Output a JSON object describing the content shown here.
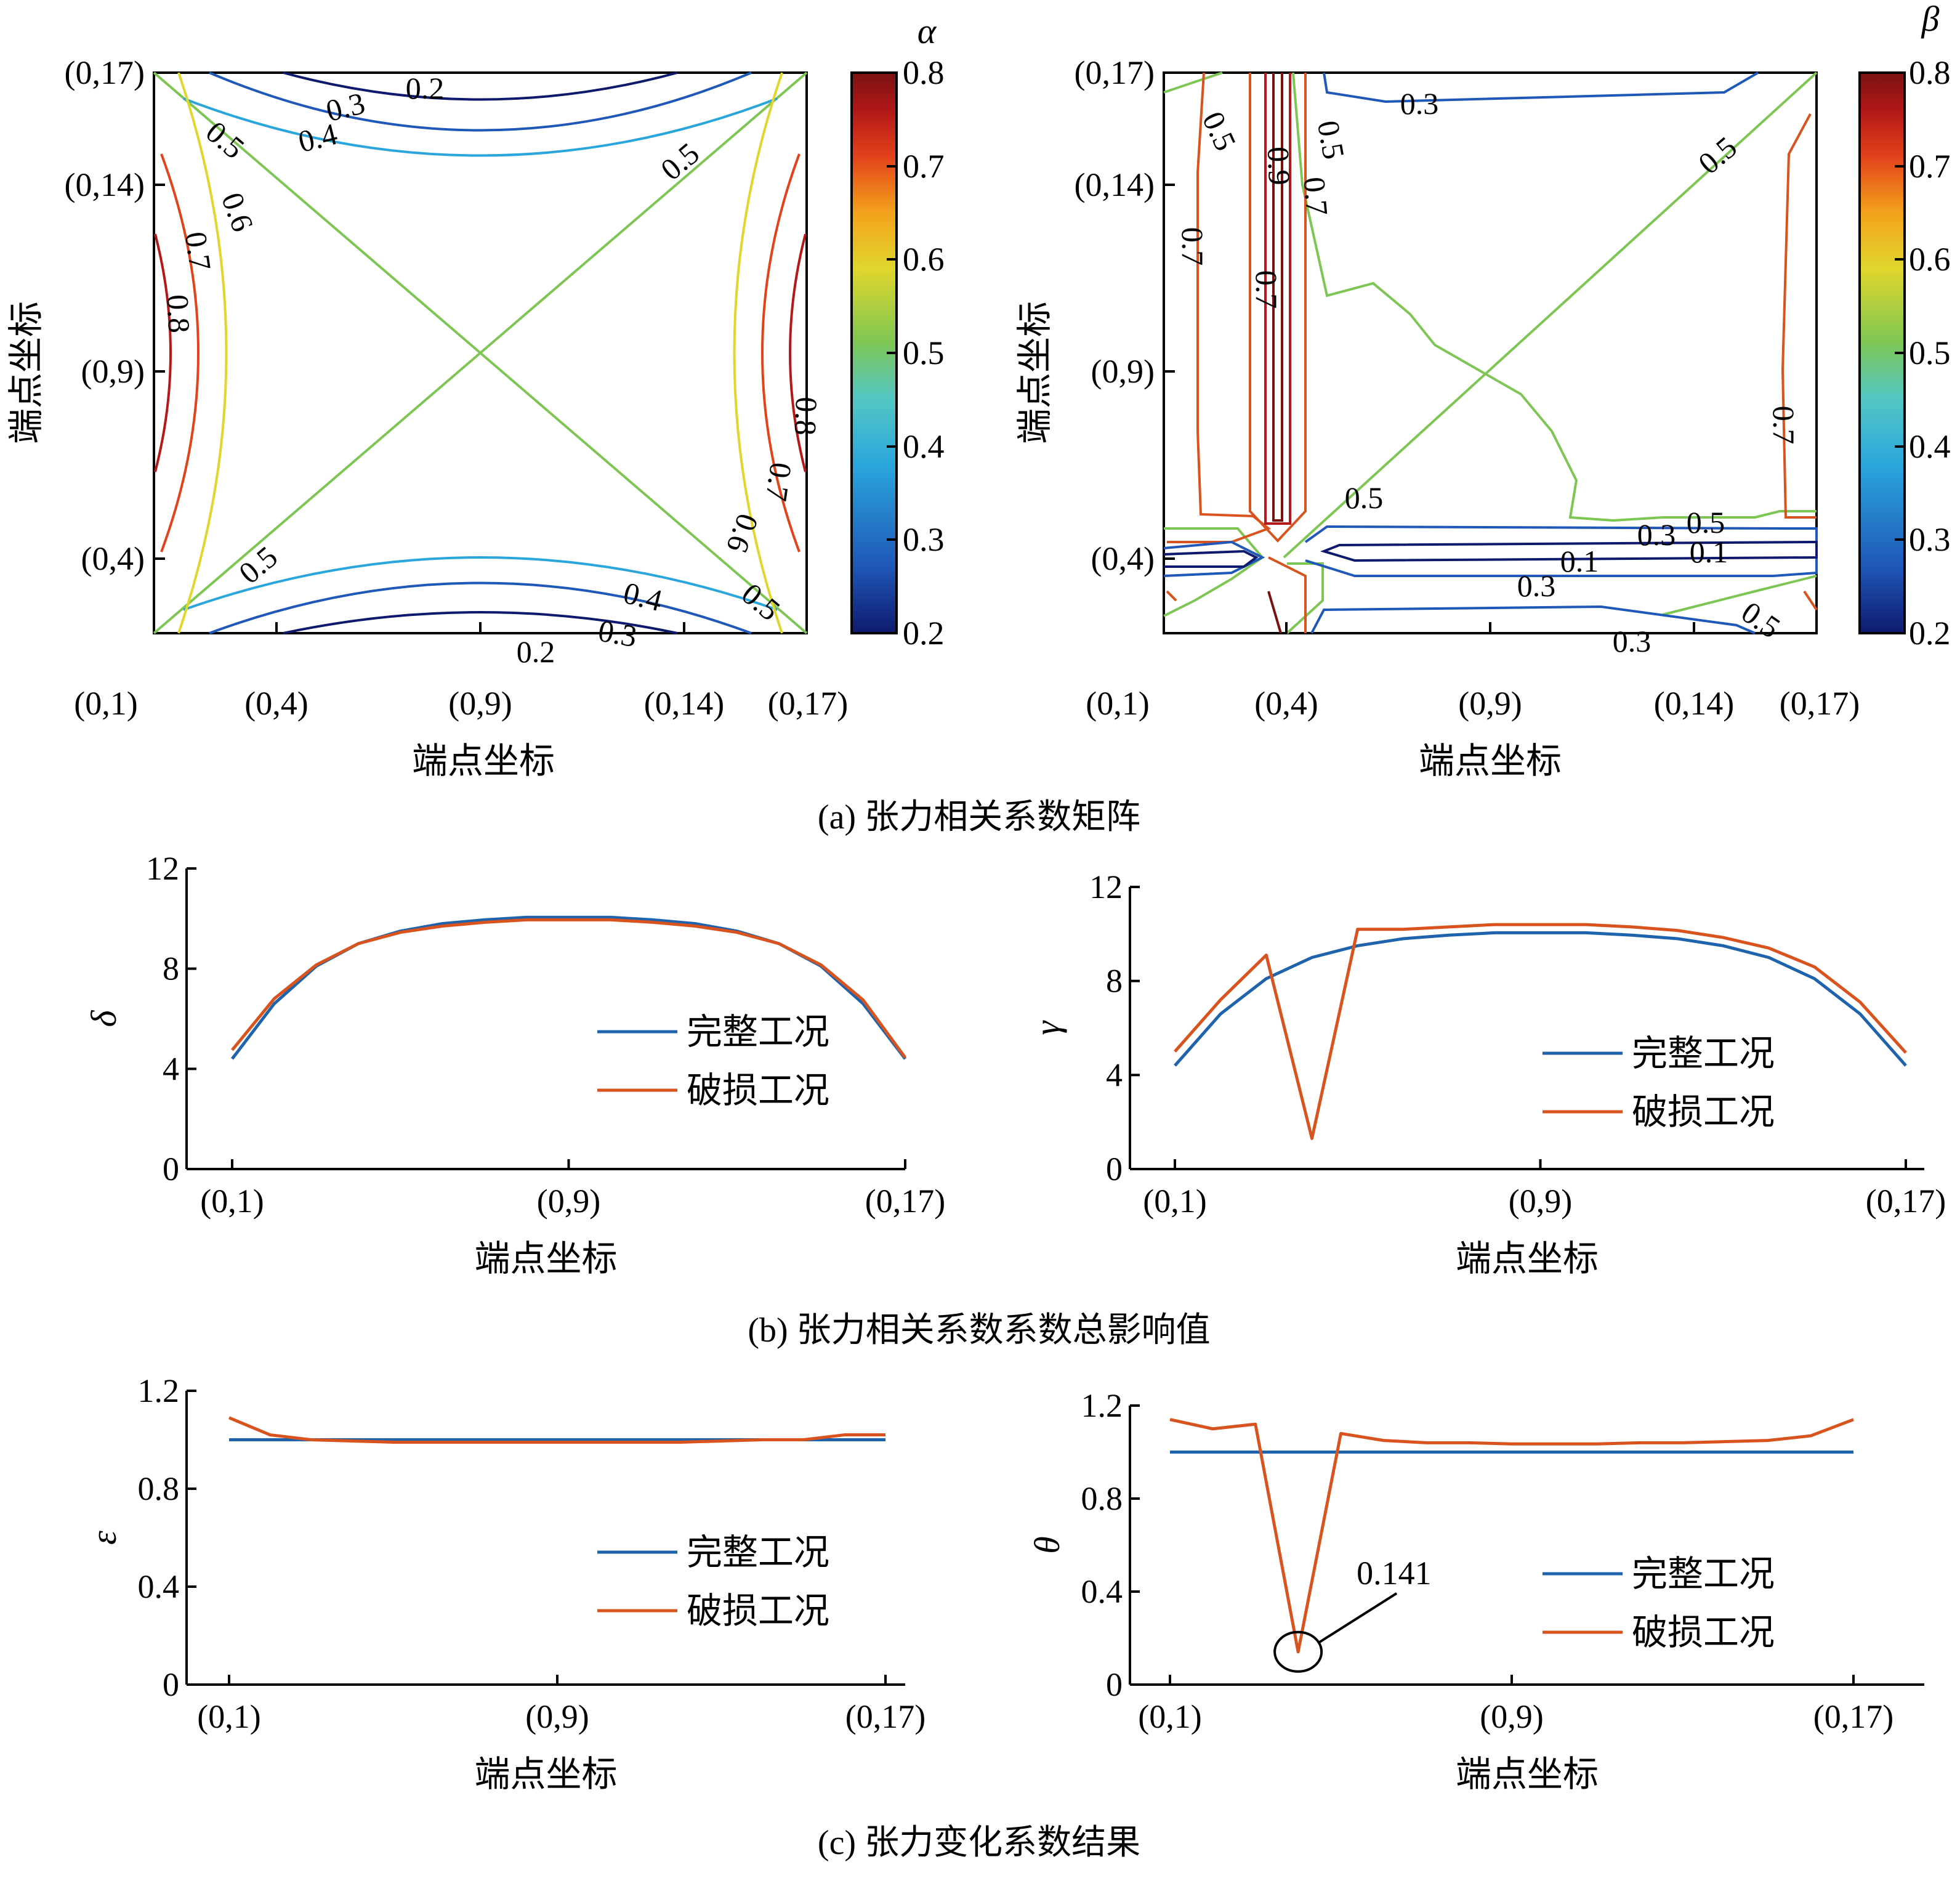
{
  "figure_captions": {
    "a": "(a) 张力相关系数矩阵",
    "b": "(b) 张力相关系数系数总影响值",
    "c": "(c) 张力变化系数结果"
  },
  "colors": {
    "intact": "#1f63ad",
    "damaged": "#d9531e",
    "colormap": [
      "#0f1a6e",
      "#1f58b8",
      "#2aa6dc",
      "#54c7c3",
      "#7ec653",
      "#e0d62c",
      "#f3a21b",
      "#e3421b",
      "#b41818",
      "#7a1212"
    ]
  },
  "chart_data": [
    {
      "id": "alpha",
      "type": "heatmap",
      "subtype": "contour",
      "colorbar_symbol": "α",
      "colorbar_range": [
        0.2,
        0.8
      ],
      "colorbar_ticks": [
        "0.8",
        "0.7",
        "0.6",
        "0.5",
        "0.4",
        "0.3",
        "0.2"
      ],
      "xlabel": "端点坐标",
      "ylabel": "端点坐标",
      "x_ticks": [
        "(0,1)",
        "(0,4)",
        "(0,9)",
        "(0,14)",
        "(0,17)"
      ],
      "y_ticks": [
        "(0,17)",
        "(0,14)",
        "(0,9)",
        "(0,4)"
      ],
      "contour_labels": [
        "0.2",
        "0.3",
        "0.4",
        "0.5",
        "0.5",
        "0.6",
        "0.7",
        "0.8",
        "0.8",
        "0.7",
        "0.6",
        "0.5",
        "0.5",
        "0.4",
        "0.3",
        "0.2"
      ]
    },
    {
      "id": "beta",
      "type": "heatmap",
      "subtype": "contour",
      "colorbar_symbol": "β",
      "colorbar_range": [
        0.2,
        0.8
      ],
      "colorbar_ticks": [
        "0.8",
        "0.7",
        "0.6",
        "0.5",
        "0.4",
        "0.3",
        "0.2"
      ],
      "xlabel": "端点坐标",
      "ylabel": "端点坐标",
      "x_ticks": [
        "(0,1)",
        "(0,4)",
        "(0,9)",
        "(0,14)",
        "(0,17)"
      ],
      "y_ticks": [
        "(0,17)",
        "(0,14)",
        "(0,9)",
        "(0,4)"
      ],
      "contour_labels": [
        "0.3",
        "0.5",
        "0.5",
        "0.7",
        "0.9",
        "0.7",
        "0.5",
        "0.7",
        "0.5",
        "0.3",
        "0.1",
        "0.1",
        "0.5",
        "0.3",
        "0.3",
        "0.5",
        "0.7"
      ]
    },
    {
      "id": "delta",
      "type": "line",
      "ylabel": "δ",
      "xlabel": "端点坐标",
      "x_ticks": [
        "(0,1)",
        "(0,9)",
        "(0,17)"
      ],
      "y_ticks": [
        "0",
        "4",
        "8",
        "12"
      ],
      "ylim": [
        0,
        12
      ],
      "x": [
        1,
        2,
        3,
        4,
        5,
        6,
        7,
        8,
        9,
        10,
        11,
        12,
        13,
        14,
        15,
        16,
        17
      ],
      "series": [
        {
          "name": "完整工况",
          "values": [
            4.4,
            6.6,
            8.1,
            9.0,
            9.5,
            9.8,
            9.95,
            10.05,
            10.05,
            10.05,
            9.95,
            9.8,
            9.5,
            9.0,
            8.1,
            6.6,
            4.4
          ]
        },
        {
          "name": "破损工况",
          "values": [
            4.75,
            6.8,
            8.15,
            9.0,
            9.45,
            9.7,
            9.85,
            9.95,
            9.95,
            9.95,
            9.85,
            9.7,
            9.45,
            9.0,
            8.15,
            6.75,
            4.45
          ]
        }
      ]
    },
    {
      "id": "gamma",
      "type": "line",
      "ylabel": "γ",
      "xlabel": "端点坐标",
      "x_ticks": [
        "(0,1)",
        "(0,9)",
        "(0,17)"
      ],
      "y_ticks": [
        "0",
        "4",
        "8",
        "12"
      ],
      "ylim": [
        0,
        12
      ],
      "x": [
        1,
        2,
        3,
        4,
        5,
        6,
        7,
        8,
        9,
        10,
        11,
        12,
        13,
        14,
        15,
        16,
        17
      ],
      "series": [
        {
          "name": "完整工况",
          "values": [
            4.4,
            6.6,
            8.1,
            9.0,
            9.5,
            9.8,
            9.95,
            10.05,
            10.05,
            10.05,
            9.95,
            9.8,
            9.5,
            9.0,
            8.1,
            6.6,
            4.4
          ]
        },
        {
          "name": "破损工况",
          "values": [
            5.0,
            7.2,
            9.1,
            1.3,
            10.2,
            10.2,
            10.3,
            10.4,
            10.4,
            10.4,
            10.3,
            10.15,
            9.85,
            9.4,
            8.6,
            7.1,
            4.95
          ]
        }
      ]
    },
    {
      "id": "epsilon",
      "type": "line",
      "ylabel": "ε",
      "xlabel": "端点坐标",
      "x_ticks": [
        "(0,1)",
        "(0,9)",
        "(0,17)"
      ],
      "y_ticks": [
        "0",
        "0.4",
        "0.8",
        "1.2"
      ],
      "ylim": [
        0,
        1.2
      ],
      "x": [
        1,
        2,
        3,
        4,
        5,
        6,
        7,
        8,
        9,
        10,
        11,
        12,
        13,
        14,
        15,
        16,
        17
      ],
      "series": [
        {
          "name": "完整工况",
          "values": [
            1.0,
            1.0,
            1.0,
            1.0,
            1.0,
            1.0,
            1.0,
            1.0,
            1.0,
            1.0,
            1.0,
            1.0,
            1.0,
            1.0,
            1.0,
            1.0,
            1.0
          ]
        },
        {
          "name": "破损工况",
          "values": [
            1.09,
            1.02,
            1.0,
            0.995,
            0.99,
            0.99,
            0.99,
            0.99,
            0.99,
            0.99,
            0.99,
            0.99,
            0.995,
            1.0,
            1.0,
            1.02,
            1.02
          ]
        }
      ]
    },
    {
      "id": "theta",
      "type": "line",
      "ylabel": "θ",
      "xlabel": "端点坐标",
      "x_ticks": [
        "(0,1)",
        "(0,9)",
        "(0,17)"
      ],
      "y_ticks": [
        "0",
        "0.4",
        "0.8",
        "1.2"
      ],
      "ylim": [
        0,
        1.2
      ],
      "x": [
        1,
        2,
        3,
        4,
        5,
        6,
        7,
        8,
        9,
        10,
        11,
        12,
        13,
        14,
        15,
        16,
        17
      ],
      "annotation": "0.141",
      "series": [
        {
          "name": "完整工况",
          "values": [
            1.0,
            1.0,
            1.0,
            1.0,
            1.0,
            1.0,
            1.0,
            1.0,
            1.0,
            1.0,
            1.0,
            1.0,
            1.0,
            1.0,
            1.0,
            1.0,
            1.0
          ]
        },
        {
          "name": "破损工况",
          "values": [
            1.14,
            1.1,
            1.12,
            0.141,
            1.08,
            1.05,
            1.04,
            1.04,
            1.035,
            1.035,
            1.035,
            1.04,
            1.04,
            1.045,
            1.05,
            1.07,
            1.14
          ]
        }
      ]
    }
  ]
}
